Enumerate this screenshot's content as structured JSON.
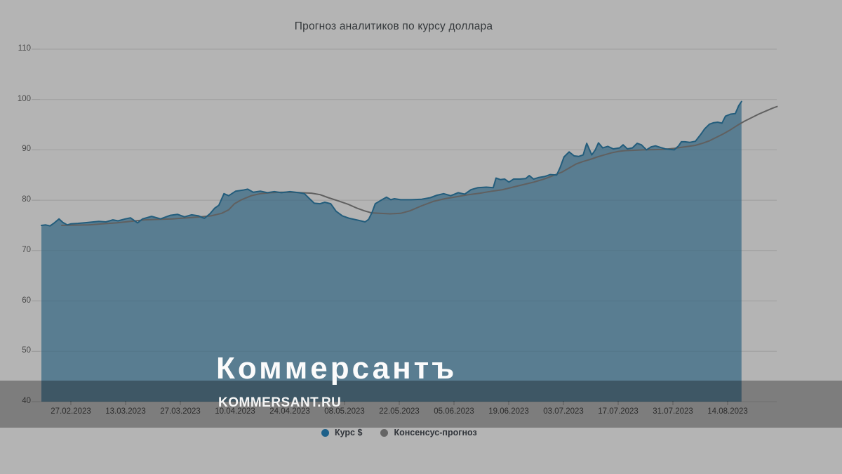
{
  "title": "Прогноз аналитиков по курсу доллара",
  "watermark": {
    "logo": "Коммерсантъ",
    "site": "KOMMERSANT.RU"
  },
  "legend": [
    {
      "label": "Курс $",
      "color": "#1d6089"
    },
    {
      "label": "Консенсус-прогноз",
      "color": "#656565"
    }
  ],
  "colors": {
    "background": "#b4b4b4",
    "area_fill": "#597d91",
    "area_stroke": "#235d7c",
    "consensus_line": "#606060",
    "gridline": "#a7a7a7",
    "tick": "#979797",
    "overlay_band": "rgba(0,0,0,0.30)"
  },
  "chart_data": {
    "type": "area",
    "title": "Прогноз аналитиков по курсу доллара",
    "xlabel": "",
    "ylabel": "",
    "ylim": [
      40,
      110
    ],
    "y_ticks": [
      110,
      100,
      90,
      80,
      70,
      60,
      50,
      40
    ],
    "x_tick_labels": [
      "27.02.2023",
      "13.03.2023",
      "27.03.2023",
      "10.04.2023",
      "24.04.2023",
      "08.05.2023",
      "22.05.2023",
      "05.06.2023",
      "19.06.2023",
      "03.07.2023",
      "17.07.2023",
      "31.07.2023",
      "14.08.2023"
    ],
    "grid": true,
    "legend_position": "bottom",
    "series": [
      {
        "name": "Курс $",
        "type": "area",
        "points": [
          [
            0,
            75.0
          ],
          [
            1.1,
            75.1
          ],
          [
            2.2,
            74.9
          ],
          [
            3.3,
            75.5
          ],
          [
            4.5,
            76.3
          ],
          [
            5.5,
            75.6
          ],
          [
            6.6,
            75.1
          ],
          [
            7.5,
            75.3
          ],
          [
            9.3,
            75.4
          ],
          [
            12,
            75.6
          ],
          [
            14.7,
            75.8
          ],
          [
            16.5,
            75.7
          ],
          [
            18.3,
            76.1
          ],
          [
            19.6,
            75.9
          ],
          [
            21.5,
            76.3
          ],
          [
            22.8,
            76.5
          ],
          [
            24.6,
            75.5
          ],
          [
            25.9,
            76.3
          ],
          [
            28.2,
            76.8
          ],
          [
            30.5,
            76.3
          ],
          [
            33,
            77.0
          ],
          [
            34.8,
            77.2
          ],
          [
            36.6,
            76.7
          ],
          [
            38.4,
            77.1
          ],
          [
            40.2,
            76.9
          ],
          [
            41.7,
            76.4
          ],
          [
            43.1,
            77.3
          ],
          [
            44.3,
            78.4
          ],
          [
            45.4,
            79.0
          ],
          [
            46.7,
            81.3
          ],
          [
            47.9,
            80.9
          ],
          [
            49.7,
            81.8
          ],
          [
            51.5,
            82.0
          ],
          [
            52.8,
            82.2
          ],
          [
            54.2,
            81.6
          ],
          [
            56,
            81.8
          ],
          [
            57.8,
            81.5
          ],
          [
            59.6,
            81.7
          ],
          [
            61.4,
            81.5
          ],
          [
            63.6,
            81.7
          ],
          [
            65.9,
            81.5
          ],
          [
            67.3,
            81.3
          ],
          [
            68.6,
            80.3
          ],
          [
            69.8,
            79.4
          ],
          [
            71.3,
            79.3
          ],
          [
            72.5,
            79.6
          ],
          [
            74,
            79.3
          ],
          [
            75.4,
            77.8
          ],
          [
            77,
            76.9
          ],
          [
            78.8,
            76.4
          ],
          [
            80.6,
            76.1
          ],
          [
            81.7,
            75.9
          ],
          [
            82.8,
            75.7
          ],
          [
            83.7,
            76.2
          ],
          [
            84.6,
            77.6
          ],
          [
            85.4,
            79.3
          ],
          [
            86.7,
            79.9
          ],
          [
            88.3,
            80.6
          ],
          [
            89.4,
            80.1
          ],
          [
            90.3,
            80.3
          ],
          [
            91.9,
            80.1
          ],
          [
            94.6,
            80.1
          ],
          [
            97.3,
            80.2
          ],
          [
            99.5,
            80.5
          ],
          [
            101.2,
            81.0
          ],
          [
            102.9,
            81.3
          ],
          [
            104.7,
            80.9
          ],
          [
            106.6,
            81.5
          ],
          [
            108.3,
            81.2
          ],
          [
            109.9,
            82.1
          ],
          [
            111.7,
            82.5
          ],
          [
            113.8,
            82.6
          ],
          [
            115.6,
            82.5
          ],
          [
            116.3,
            84.4
          ],
          [
            117.4,
            84.1
          ],
          [
            118.5,
            84.2
          ],
          [
            119.6,
            83.6
          ],
          [
            120.8,
            84.2
          ],
          [
            122.4,
            84.2
          ],
          [
            123.9,
            84.3
          ],
          [
            124.8,
            84.9
          ],
          [
            125.9,
            84.2
          ],
          [
            127.1,
            84.5
          ],
          [
            128.7,
            84.7
          ],
          [
            130.2,
            85.1
          ],
          [
            131.8,
            85.0
          ],
          [
            132.7,
            86.5
          ],
          [
            133.7,
            88.6
          ],
          [
            135,
            89.6
          ],
          [
            136.3,
            88.8
          ],
          [
            137.5,
            88.7
          ],
          [
            138.6,
            89.0
          ],
          [
            139.5,
            91.3
          ],
          [
            140.8,
            89.0
          ],
          [
            141.7,
            90.0
          ],
          [
            142.5,
            91.4
          ],
          [
            143.6,
            90.4
          ],
          [
            144.9,
            90.7
          ],
          [
            146.3,
            90.2
          ],
          [
            147.9,
            90.4
          ],
          [
            148.8,
            91.0
          ],
          [
            149.9,
            90.2
          ],
          [
            151.2,
            90.4
          ],
          [
            152.4,
            91.3
          ],
          [
            153.5,
            91.0
          ],
          [
            154.8,
            90.0
          ],
          [
            156,
            90.6
          ],
          [
            157.1,
            90.8
          ],
          [
            158.3,
            90.5
          ],
          [
            159.6,
            90.2
          ],
          [
            160.7,
            90.1
          ],
          [
            161.9,
            90.0
          ],
          [
            163,
            90.8
          ],
          [
            163.7,
            91.6
          ],
          [
            164.6,
            91.6
          ],
          [
            165.9,
            91.5
          ],
          [
            167.3,
            91.7
          ],
          [
            168.6,
            93.0
          ],
          [
            169.7,
            94.2
          ],
          [
            170.9,
            95.1
          ],
          [
            172,
            95.4
          ],
          [
            173,
            95.5
          ],
          [
            174.1,
            95.3
          ],
          [
            175,
            96.7
          ],
          [
            176.3,
            97.1
          ],
          [
            177.5,
            97.2
          ],
          [
            178.4,
            98.8
          ],
          [
            179.1,
            99.6
          ]
        ]
      },
      {
        "name": "Консенсус-прогноз",
        "type": "line",
        "points": [
          [
            5.2,
            75.0
          ],
          [
            8.4,
            75.05
          ],
          [
            12,
            75.1
          ],
          [
            15.6,
            75.3
          ],
          [
            19.2,
            75.5
          ],
          [
            22.8,
            75.8
          ],
          [
            26.4,
            76.1
          ],
          [
            30,
            76.2
          ],
          [
            33.6,
            76.3
          ],
          [
            37.2,
            76.5
          ],
          [
            40.8,
            76.7
          ],
          [
            43.4,
            76.9
          ],
          [
            46.1,
            77.4
          ],
          [
            47.9,
            78.1
          ],
          [
            49.4,
            79.3
          ],
          [
            51.2,
            80.1
          ],
          [
            53.7,
            80.9
          ],
          [
            56,
            81.3
          ],
          [
            58.7,
            81.5
          ],
          [
            61.4,
            81.6
          ],
          [
            64.1,
            81.6
          ],
          [
            66.4,
            81.5
          ],
          [
            69.1,
            81.4
          ],
          [
            71.3,
            81.1
          ],
          [
            73.4,
            80.5
          ],
          [
            75.8,
            79.9
          ],
          [
            78.5,
            79.2
          ],
          [
            80.8,
            78.4
          ],
          [
            82.6,
            77.9
          ],
          [
            84.4,
            77.5
          ],
          [
            86.5,
            77.4
          ],
          [
            89.2,
            77.3
          ],
          [
            91.9,
            77.4
          ],
          [
            94.3,
            77.9
          ],
          [
            97.3,
            78.9
          ],
          [
            100.4,
            79.8
          ],
          [
            103.2,
            80.3
          ],
          [
            106.3,
            80.7
          ],
          [
            109.3,
            81.1
          ],
          [
            112.2,
            81.4
          ],
          [
            115.3,
            81.8
          ],
          [
            118,
            82.1
          ],
          [
            120.6,
            82.6
          ],
          [
            123.3,
            83.1
          ],
          [
            126,
            83.6
          ],
          [
            128.2,
            84.1
          ],
          [
            129.6,
            84.5
          ],
          [
            133.2,
            85.6
          ],
          [
            135,
            86.4
          ],
          [
            136.8,
            87.2
          ],
          [
            138.6,
            87.7
          ],
          [
            140.4,
            88.1
          ],
          [
            142.2,
            88.6
          ],
          [
            144,
            89.0
          ],
          [
            145.8,
            89.4
          ],
          [
            147.6,
            89.7
          ],
          [
            149.4,
            89.85
          ],
          [
            151.2,
            89.9
          ],
          [
            153.9,
            90.0
          ],
          [
            156.6,
            90.05
          ],
          [
            159.2,
            90.1
          ],
          [
            161.9,
            90.3
          ],
          [
            164.6,
            90.6
          ],
          [
            167.3,
            90.9
          ],
          [
            169.1,
            91.3
          ],
          [
            170.9,
            91.8
          ],
          [
            172.7,
            92.5
          ],
          [
            174.5,
            93.2
          ],
          [
            176.3,
            94.0
          ],
          [
            178.1,
            94.9
          ],
          [
            179.9,
            95.7
          ],
          [
            181.7,
            96.4
          ],
          [
            183.5,
            97.1
          ],
          [
            185.3,
            97.7
          ],
          [
            187.1,
            98.3
          ],
          [
            188.2,
            98.6
          ]
        ]
      }
    ]
  }
}
